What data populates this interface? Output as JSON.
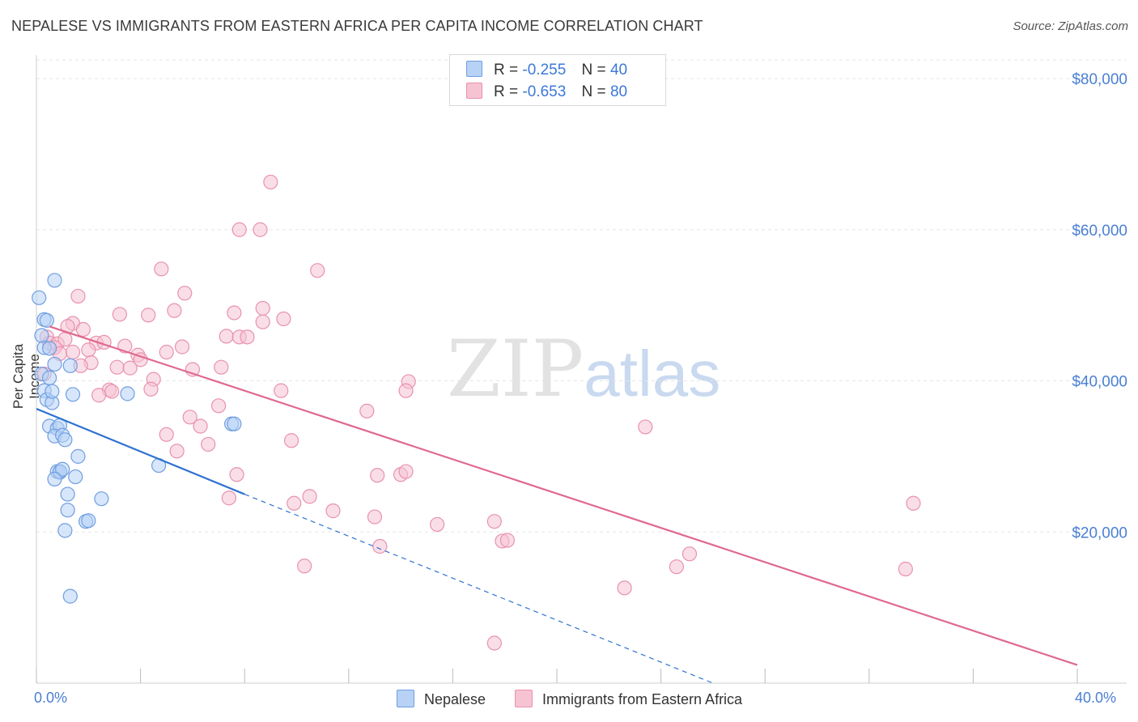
{
  "title": "NEPALESE VS IMMIGRANTS FROM EASTERN AFRICA PER CAPITA INCOME CORRELATION CHART",
  "source": "Source: ZipAtlas.com",
  "watermark": {
    "zip": "ZIP",
    "atlas": "atlas"
  },
  "colors": {
    "blue_fill": "#b7d2f5",
    "blue_stroke": "#6f9ee0",
    "blue_line": "#2f72d1",
    "pink_fill": "#f6c3d3",
    "pink_stroke": "#e892ad",
    "pink_line": "#e0698f",
    "axis_text": "#4a7fd4",
    "grid": "#e6e6e6"
  },
  "legend_top": {
    "rows": [
      {
        "r_label": "R =",
        "r_value": "-0.255",
        "n_label": "N =",
        "n_value": "40"
      },
      {
        "r_label": "R =",
        "r_value": "-0.653",
        "n_label": "N =",
        "n_value": "80"
      }
    ]
  },
  "legend_bottom": [
    "Nepalese",
    "Immigrants from Eastern Africa"
  ],
  "chart_data": {
    "type": "scatter",
    "title": "NEPALESE VS IMMIGRANTS FROM EASTERN AFRICA PER CAPITA INCOME CORRELATION CHART",
    "xlabel": "",
    "ylabel": "Per Capita Income",
    "xlim": [
      0,
      40
    ],
    "ylim": [
      0,
      80000
    ],
    "x_tick_labels": [
      "0.0%",
      "40.0%"
    ],
    "y_ticks": [
      20000,
      40000,
      60000,
      80000
    ],
    "y_tick_labels": [
      "$20,000",
      "$40,000",
      "$60,000",
      "$80,000"
    ],
    "grid": true,
    "legend_placement": "top-center",
    "series": [
      {
        "name": "Nepalese",
        "points": [
          [
            0.1,
            51000
          ],
          [
            0.7,
            53300
          ],
          [
            0.3,
            48100
          ],
          [
            0.4,
            48000
          ],
          [
            0.3,
            44400
          ],
          [
            0.5,
            44300
          ],
          [
            0.7,
            42200
          ],
          [
            1.3,
            42000
          ],
          [
            0.2,
            40900
          ],
          [
            0.5,
            40400
          ],
          [
            0.3,
            38700
          ],
          [
            1.4,
            38200
          ],
          [
            3.5,
            38300
          ],
          [
            0.4,
            37500
          ],
          [
            0.6,
            37100
          ],
          [
            0.5,
            34000
          ],
          [
            0.8,
            33700
          ],
          [
            0.9,
            34100
          ],
          [
            0.7,
            32700
          ],
          [
            1.0,
            32800
          ],
          [
            1.1,
            32200
          ],
          [
            7.5,
            34300
          ],
          [
            7.6,
            34300
          ],
          [
            1.6,
            30000
          ],
          [
            4.7,
            28800
          ],
          [
            0.8,
            28000
          ],
          [
            0.9,
            27900
          ],
          [
            0.9,
            28000
          ],
          [
            1.0,
            28300
          ],
          [
            0.7,
            27000
          ],
          [
            1.5,
            27300
          ],
          [
            1.2,
            25000
          ],
          [
            2.5,
            24400
          ],
          [
            1.2,
            22900
          ],
          [
            1.9,
            21400
          ],
          [
            2.0,
            21500
          ],
          [
            1.1,
            20200
          ],
          [
            1.3,
            11500
          ],
          [
            0.2,
            46000
          ],
          [
            0.6,
            38600
          ]
        ],
        "trend": {
          "x0": 0,
          "y0": 36300,
          "x1": 8.0,
          "y1": 25000,
          "dashed_to_x": 26,
          "dashed_to_y": 0
        }
      },
      {
        "name": "Immigrants from Eastern Africa",
        "points": [
          [
            9.0,
            66300
          ],
          [
            7.8,
            60000
          ],
          [
            8.6,
            60000
          ],
          [
            4.8,
            54800
          ],
          [
            10.8,
            54600
          ],
          [
            5.7,
            51600
          ],
          [
            1.6,
            51200
          ],
          [
            8.7,
            49600
          ],
          [
            5.3,
            49300
          ],
          [
            7.6,
            49000
          ],
          [
            4.3,
            48700
          ],
          [
            3.2,
            48800
          ],
          [
            9.5,
            48200
          ],
          [
            8.7,
            47800
          ],
          [
            1.4,
            47600
          ],
          [
            1.2,
            47200
          ],
          [
            1.8,
            46800
          ],
          [
            7.3,
            45900
          ],
          [
            7.8,
            45800
          ],
          [
            8.1,
            45800
          ],
          [
            0.4,
            45800
          ],
          [
            0.5,
            45000
          ],
          [
            0.8,
            44900
          ],
          [
            1.1,
            45500
          ],
          [
            2.3,
            45000
          ],
          [
            2.6,
            45100
          ],
          [
            0.7,
            44400
          ],
          [
            3.4,
            44600
          ],
          [
            5.6,
            44500
          ],
          [
            2.0,
            44100
          ],
          [
            0.9,
            43600
          ],
          [
            5.0,
            43800
          ],
          [
            3.9,
            43400
          ],
          [
            4.0,
            42800
          ],
          [
            2.1,
            42400
          ],
          [
            1.7,
            42000
          ],
          [
            3.1,
            41800
          ],
          [
            3.6,
            41700
          ],
          [
            6.0,
            41500
          ],
          [
            7.1,
            41800
          ],
          [
            0.3,
            40900
          ],
          [
            4.5,
            40200
          ],
          [
            14.3,
            39900
          ],
          [
            9.4,
            38700
          ],
          [
            14.2,
            38700
          ],
          [
            2.8,
            38800
          ],
          [
            4.4,
            38900
          ],
          [
            2.9,
            38600
          ],
          [
            2.4,
            38100
          ],
          [
            7.0,
            36700
          ],
          [
            12.7,
            36000
          ],
          [
            5.9,
            35200
          ],
          [
            6.3,
            34000
          ],
          [
            23.4,
            33900
          ],
          [
            5.0,
            32900
          ],
          [
            9.8,
            32100
          ],
          [
            6.6,
            31600
          ],
          [
            5.4,
            30700
          ],
          [
            7.7,
            27600
          ],
          [
            13.1,
            27500
          ],
          [
            14.0,
            27600
          ],
          [
            14.2,
            28000
          ],
          [
            10.5,
            24700
          ],
          [
            7.4,
            24500
          ],
          [
            9.9,
            23800
          ],
          [
            33.7,
            23800
          ],
          [
            11.4,
            22800
          ],
          [
            13.0,
            22000
          ],
          [
            17.6,
            21400
          ],
          [
            15.4,
            21000
          ],
          [
            17.9,
            18800
          ],
          [
            18.1,
            18900
          ],
          [
            13.2,
            18100
          ],
          [
            25.1,
            17100
          ],
          [
            10.3,
            15500
          ],
          [
            24.6,
            15400
          ],
          [
            33.4,
            15100
          ],
          [
            22.6,
            12600
          ],
          [
            17.6,
            5300
          ],
          [
            1.4,
            43800
          ]
        ],
        "trend": {
          "x0": 0.5,
          "y0": 47200,
          "x1": 40,
          "y1": 2400
        }
      }
    ]
  }
}
